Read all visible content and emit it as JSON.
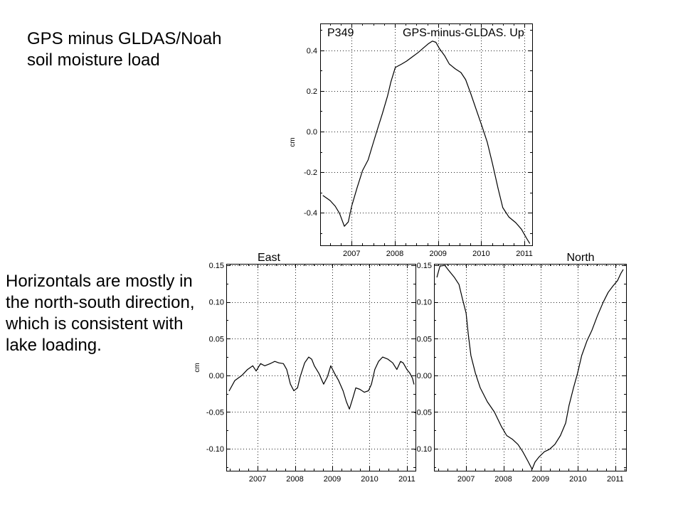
{
  "slide": {
    "heading_lines": [
      "GPS minus GLDAS/Noah",
      "soil moisture load"
    ],
    "note_lines": [
      "Horizontals are mostly in",
      "the north-south direction,",
      "which is consistent with",
      "lake loading."
    ]
  },
  "colors": {
    "background": "#ffffff",
    "series": "#000000"
  },
  "chart_data": [
    {
      "type": "line",
      "station": "P349",
      "title": "GPS-minus-GLDAS. Up",
      "ylabel": "cm",
      "grid": true,
      "xlim": [
        2006.27,
        2011.18
      ],
      "ylim": [
        -0.561,
        0.533
      ],
      "xticks": [
        2007,
        2008,
        2009,
        2010,
        2011
      ],
      "xtick_labels": [
        "2007",
        "2008",
        "2009",
        "2010",
        "2011"
      ],
      "yticks": [
        0.4,
        0.2,
        0.0,
        -0.2,
        -0.4
      ],
      "ytick_labels": [
        "0.4",
        "0.2",
        "0.0",
        "-0.2",
        "-0.4"
      ],
      "series": [
        {
          "x": [
            2006.34,
            2006.5,
            2006.62,
            2006.72,
            2006.83,
            2006.92,
            2007.0,
            2007.12,
            2007.25,
            2007.38,
            2007.48,
            2007.58,
            2007.71,
            2007.83,
            2007.91,
            2008.01,
            2008.16,
            2008.27,
            2008.4,
            2008.54,
            2008.65,
            2008.77,
            2008.87,
            2008.95,
            2009.03,
            2009.15,
            2009.26,
            2009.4,
            2009.53,
            2009.64,
            2009.76,
            2009.89,
            2010.02,
            2010.14,
            2010.26,
            2010.39,
            2010.5,
            2010.64,
            2010.8,
            2010.93,
            2011.05,
            2011.12
          ],
          "y": [
            -0.316,
            -0.34,
            -0.368,
            -0.404,
            -0.467,
            -0.446,
            -0.368,
            -0.281,
            -0.193,
            -0.14,
            -0.07,
            0.0,
            0.088,
            0.175,
            0.246,
            0.316,
            0.333,
            0.347,
            0.368,
            0.39,
            0.41,
            0.432,
            0.446,
            0.44,
            0.41,
            0.375,
            0.333,
            0.309,
            0.291,
            0.256,
            0.186,
            0.105,
            0.025,
            -0.053,
            -0.158,
            -0.281,
            -0.375,
            -0.421,
            -0.449,
            -0.481,
            -0.526,
            -0.551
          ]
        }
      ]
    },
    {
      "type": "line",
      "title": "East",
      "ylabel": "cm",
      "grid": true,
      "xlim": [
        2006.16,
        2011.23
      ],
      "ylim": [
        -0.13,
        0.152
      ],
      "xticks": [
        2007,
        2008,
        2009,
        2010,
        2011
      ],
      "xtick_labels": [
        "2007",
        "2008",
        "2009",
        "2010",
        "2011"
      ],
      "yticks": [
        0.15,
        0.1,
        0.05,
        0,
        -0.05,
        -0.1
      ],
      "ytick_labels": [
        "0.15",
        "0.10",
        "0.05",
        "0.00",
        "-0.05",
        "-0.10"
      ],
      "series": [
        {
          "x": [
            2006.24,
            2006.39,
            2006.58,
            2006.73,
            2006.87,
            2006.96,
            2007.08,
            2007.19,
            2007.34,
            2007.46,
            2007.57,
            2007.69,
            2007.78,
            2007.88,
            2007.97,
            2008.07,
            2008.14,
            2008.26,
            2008.37,
            2008.45,
            2008.52,
            2008.64,
            2008.77,
            2008.87,
            2008.96,
            2009.06,
            2009.17,
            2009.29,
            2009.38,
            2009.46,
            2009.55,
            2009.63,
            2009.74,
            2009.86,
            2009.97,
            2010.05,
            2010.14,
            2010.24,
            2010.35,
            2010.49,
            2010.62,
            2010.73,
            2010.83,
            2010.9,
            2011.0,
            2011.08,
            2011.15,
            2011.19
          ],
          "y": [
            -0.021,
            -0.007,
            0.0,
            0.008,
            0.013,
            0.006,
            0.016,
            0.013,
            0.016,
            0.019,
            0.017,
            0.016,
            0.008,
            -0.012,
            -0.021,
            -0.017,
            -0.002,
            0.017,
            0.025,
            0.022,
            0.013,
            0.003,
            -0.012,
            -0.002,
            0.013,
            0.003,
            -0.007,
            -0.021,
            -0.036,
            -0.046,
            -0.031,
            -0.017,
            -0.019,
            -0.023,
            -0.021,
            -0.012,
            0.008,
            0.019,
            0.025,
            0.022,
            0.017,
            0.008,
            0.019,
            0.017,
            0.008,
            0.003,
            -0.004,
            -0.012
          ]
        }
      ]
    },
    {
      "type": "line",
      "title": "North",
      "grid": true,
      "xlim": [
        2006.14,
        2011.29
      ],
      "ylim": [
        -0.13,
        0.152
      ],
      "xticks": [
        2007,
        2008,
        2009,
        2010,
        2011
      ],
      "xtick_labels": [
        "2007",
        "2008",
        "2009",
        "2010",
        "2011"
      ],
      "yticks": [
        0.15,
        0.1,
        0.05,
        0,
        -0.05,
        -0.1
      ],
      "ytick_labels": [
        "0.15",
        "0.10",
        "0.05",
        "0.00",
        "-0.05",
        "-0.10"
      ],
      "series": [
        {
          "x": [
            2006.22,
            2006.3,
            2006.43,
            2006.52,
            2006.68,
            2006.81,
            2006.9,
            2007.0,
            2007.06,
            2007.13,
            2007.25,
            2007.38,
            2007.57,
            2007.76,
            2007.95,
            2008.09,
            2008.24,
            2008.39,
            2008.52,
            2008.66,
            2008.77,
            2008.85,
            2008.96,
            2009.1,
            2009.23,
            2009.38,
            2009.53,
            2009.67,
            2009.76,
            2009.88,
            2009.99,
            2010.1,
            2010.24,
            2010.37,
            2010.52,
            2010.68,
            2010.81,
            2010.94,
            2011.06,
            2011.15,
            2011.21
          ],
          "y": [
            0.134,
            0.149,
            0.15,
            0.144,
            0.134,
            0.124,
            0.105,
            0.085,
            0.056,
            0.027,
            0.003,
            -0.017,
            -0.036,
            -0.05,
            -0.07,
            -0.082,
            -0.087,
            -0.094,
            -0.104,
            -0.117,
            -0.128,
            -0.118,
            -0.111,
            -0.104,
            -0.101,
            -0.094,
            -0.082,
            -0.065,
            -0.041,
            -0.017,
            0.003,
            0.027,
            0.047,
            0.061,
            0.081,
            0.1,
            0.113,
            0.122,
            0.129,
            0.139,
            0.144
          ]
        }
      ]
    }
  ]
}
